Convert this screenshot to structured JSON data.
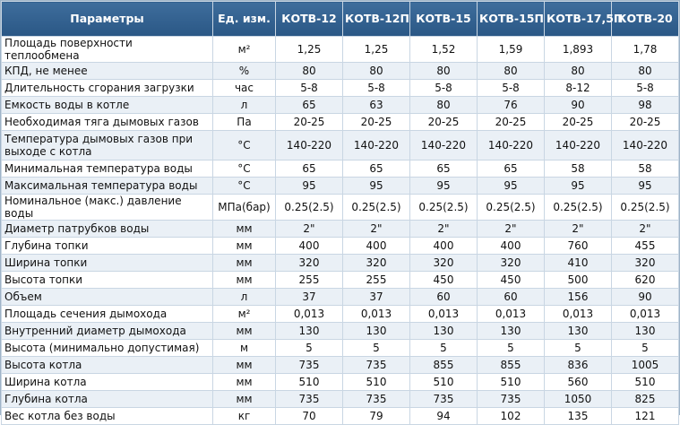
{
  "table": {
    "headers": [
      "Параметры",
      "Ед. изм.",
      "КОТВ-12",
      "КОТВ-12П",
      "КОТВ-15",
      "КОТВ-15П",
      "КОТВ-17,5П",
      "КОТВ-20"
    ],
    "rows": [
      [
        "Площадь поверхности теплообмена",
        "м²",
        "1,25",
        "1,25",
        "1,52",
        "1,59",
        "1,893",
        "1,78"
      ],
      [
        "КПД, не менее",
        "%",
        "80",
        "80",
        "80",
        "80",
        "80",
        "80"
      ],
      [
        "Длительность сгорания загрузки",
        "час",
        "5-8",
        "5-8",
        "5-8",
        "5-8",
        "8-12",
        "5-8"
      ],
      [
        "Емкость воды в котле",
        "л",
        "65",
        "63",
        "80",
        "76",
        "90",
        "98"
      ],
      [
        "Необходимая тяга дымовых газов",
        "Па",
        "20-25",
        "20-25",
        "20-25",
        "20-25",
        "20-25",
        "20-25"
      ],
      [
        "Температура дымовых газов при выходе с котла",
        "°С",
        "140-220",
        "140-220",
        "140-220",
        "140-220",
        "140-220",
        "140-220"
      ],
      [
        "Минимальная температура воды",
        "°С",
        "65",
        "65",
        "65",
        "65",
        "58",
        "58"
      ],
      [
        "Максимальная температура воды",
        "°С",
        "95",
        "95",
        "95",
        "95",
        "95",
        "95"
      ],
      [
        "Номинальное (макс.) давление воды",
        "МПа(бар)",
        "0.25(2.5)",
        "0.25(2.5)",
        "0.25(2.5)",
        "0.25(2.5)",
        "0.25(2.5)",
        "0.25(2.5)"
      ],
      [
        "Диаметр патрубков воды",
        "мм",
        "2\"",
        "2\"",
        "2\"",
        "2\"",
        "2\"",
        "2\""
      ],
      [
        "Глубина топки",
        "мм",
        "400",
        "400",
        "400",
        "400",
        "760",
        "455"
      ],
      [
        "Ширина топки",
        "мм",
        "320",
        "320",
        "320",
        "320",
        "410",
        "320"
      ],
      [
        "Высота топки",
        "мм",
        "255",
        "255",
        "450",
        "450",
        "500",
        "620"
      ],
      [
        "Объем",
        "л",
        "37",
        "37",
        "60",
        "60",
        "156",
        "90"
      ],
      [
        "Площадь сечения дымохода",
        "м²",
        "0,013",
        "0,013",
        "0,013",
        "0,013",
        "0,013",
        "0,013"
      ],
      [
        "Внутренний диаметр дымохода",
        "мм",
        "130",
        "130",
        "130",
        "130",
        "130",
        "130"
      ],
      [
        "Высота (минимально допустимая)",
        "м",
        "5",
        "5",
        "5",
        "5",
        "5",
        "5"
      ],
      [
        "Высота котла",
        "мм",
        "735",
        "735",
        "855",
        "855",
        "836",
        "1005"
      ],
      [
        "Ширина котла",
        "мм",
        "510",
        "510",
        "510",
        "510",
        "560",
        "510"
      ],
      [
        "Глубина котла",
        "мм",
        "735",
        "735",
        "735",
        "735",
        "1050",
        "825"
      ],
      [
        "Вес котла без воды",
        "кг",
        "70",
        "79",
        "94",
        "102",
        "135",
        "121"
      ]
    ]
  }
}
